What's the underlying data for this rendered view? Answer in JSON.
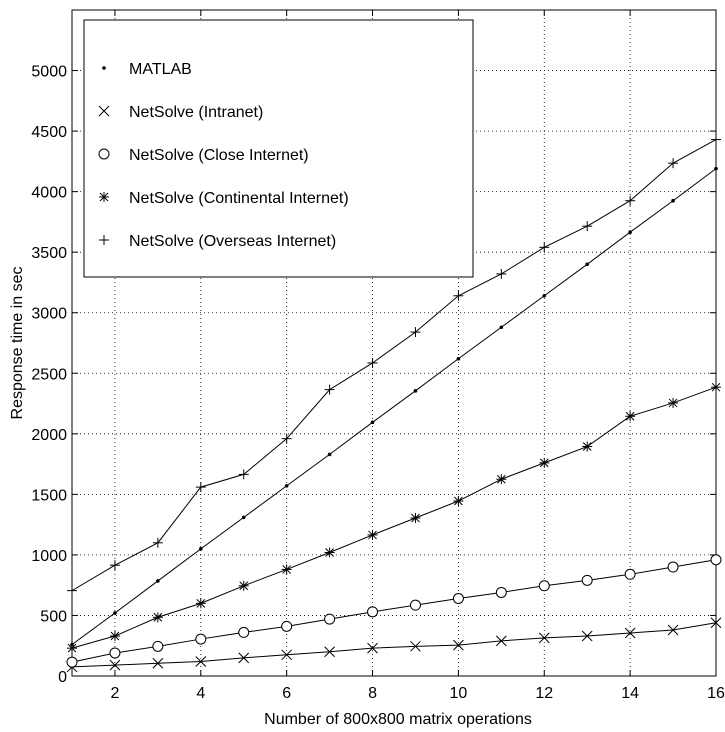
{
  "chart_data": {
    "type": "line",
    "title": "",
    "xlabel": "Number of 800x800 matrix operations",
    "ylabel": "Response time in sec",
    "xlim": [
      1,
      16
    ],
    "ylim": [
      0,
      5500
    ],
    "xticks": [
      2,
      4,
      6,
      8,
      10,
      12,
      14,
      16
    ],
    "yticks": [
      0,
      500,
      1000,
      1500,
      2000,
      2500,
      3000,
      3500,
      4000,
      4500,
      5000
    ],
    "grid": true,
    "legend_position": "top-left",
    "x": [
      1,
      2,
      3,
      4,
      5,
      6,
      7,
      8,
      9,
      10,
      11,
      12,
      13,
      14,
      15,
      16
    ],
    "series": [
      {
        "name": "MATLAB",
        "marker": "point",
        "values": [
          260,
          520,
          785,
          1050,
          1310,
          1570,
          1830,
          2095,
          2355,
          2620,
          2880,
          3140,
          3400,
          3665,
          3925,
          4190
        ]
      },
      {
        "name": "NetSolve (Intranet)",
        "marker": "x",
        "values": [
          75,
          90,
          105,
          120,
          150,
          175,
          200,
          230,
          245,
          255,
          290,
          315,
          330,
          355,
          380,
          440
        ]
      },
      {
        "name": "NetSolve (Close Internet)",
        "marker": "circle",
        "values": [
          115,
          190,
          245,
          305,
          360,
          410,
          470,
          530,
          585,
          640,
          690,
          745,
          790,
          840,
          900,
          960
        ]
      },
      {
        "name": "NetSolve (Continental Internet)",
        "marker": "star",
        "values": [
          230,
          330,
          485,
          600,
          745,
          880,
          1020,
          1165,
          1305,
          1445,
          1625,
          1760,
          1895,
          2145,
          2255,
          2385
        ]
      },
      {
        "name": "NetSolve (Overseas Internet)",
        "marker": "plus",
        "values": [
          705,
          915,
          1100,
          1560,
          1665,
          1960,
          2365,
          2585,
          2840,
          3140,
          3320,
          3540,
          3715,
          3925,
          4235,
          4430
        ]
      }
    ]
  }
}
